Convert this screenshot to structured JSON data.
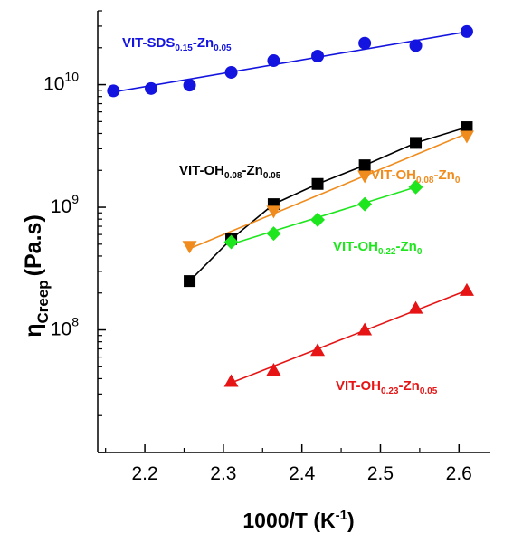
{
  "chart_data": {
    "type": "scatter",
    "title": "",
    "xlabel": "1000/T (K-1)",
    "xlabel_parts": {
      "main": "1000/T (K",
      "sup": "-1",
      "end": ")"
    },
    "ylabel": "ηCreep (Pa.s)",
    "ylabel_parts": {
      "eta": "η",
      "sub": "Creep",
      "unit": "(Pa.s)"
    },
    "x_range": [
      2.14,
      2.64
    ],
    "y_range": [
      10000000.0,
      40000000000.0
    ],
    "y_scale": "log",
    "x_ticks": [
      {
        "value": 2.2,
        "label": "2.2"
      },
      {
        "value": 2.3,
        "label": "2.3"
      },
      {
        "value": 2.4,
        "label": "2.4"
      },
      {
        "value": 2.5,
        "label": "2.5"
      },
      {
        "value": 2.6,
        "label": "2.6"
      }
    ],
    "y_ticks": [
      {
        "value": 100000000.0,
        "base": "10",
        "exp": "8"
      },
      {
        "value": 1000000000.0,
        "base": "10",
        "exp": "9"
      },
      {
        "value": 10000000000.0,
        "base": "10",
        "exp": "10"
      }
    ],
    "grid": false,
    "series": [
      {
        "id": "sds",
        "label_parts": [
          [
            "VIT-SDS",
            ""
          ],
          [
            "0.15",
            "sub"
          ],
          [
            "-Zn",
            ""
          ],
          [
            "0.05",
            "sub"
          ]
        ],
        "color": "#1414e0",
        "marker": "circle",
        "line": "fit",
        "x": [
          2.16,
          2.208,
          2.257,
          2.31,
          2.364,
          2.42,
          2.48,
          2.545,
          2.61
        ],
        "y": [
          8900000000.0,
          9300000000.0,
          9900000000.0,
          12600000000.0,
          15700000000.0,
          17100000000.0,
          21800000000.0,
          20800000000.0,
          27100000000.0
        ],
        "fit": {
          "x": [
            2.16,
            2.61
          ],
          "y": [
            8700000000.0,
            27000000000.0
          ]
        }
      },
      {
        "id": "oh008zn005",
        "label_parts": [
          [
            "VIT-OH",
            ""
          ],
          [
            "0.08",
            "sub"
          ],
          [
            "-Zn",
            ""
          ],
          [
            "0.05",
            "sub"
          ]
        ],
        "color": "#000000",
        "marker": "square",
        "line": "connect",
        "x": [
          2.257,
          2.31,
          2.364,
          2.42,
          2.48,
          2.545,
          2.61
        ],
        "y": [
          250000000.0,
          550000000.0,
          1060000000.0,
          1550000000.0,
          2200000000.0,
          3350000000.0,
          4500000000.0
        ]
      },
      {
        "id": "oh008zn0",
        "label_parts": [
          [
            "VIT-OH",
            ""
          ],
          [
            "0.08",
            "sub"
          ],
          [
            "-Zn",
            ""
          ],
          [
            "0",
            "sub"
          ]
        ],
        "color": "#f08c1e",
        "marker": "triangle-down",
        "line": "fit",
        "x": [
          2.257,
          2.364,
          2.48,
          2.61
        ],
        "y": [
          480000000.0,
          930000000.0,
          1800000000.0,
          3800000000.0
        ],
        "fit": {
          "x": [
            2.257,
            2.61
          ],
          "y": [
            460000000.0,
            4000000000.0
          ]
        }
      },
      {
        "id": "oh022zn0",
        "label_parts": [
          [
            "VIT-OH",
            ""
          ],
          [
            "0.22",
            "sub"
          ],
          [
            "-Zn",
            ""
          ],
          [
            "0",
            "sub"
          ]
        ],
        "color": "#1ee61e",
        "marker": "diamond",
        "line": "fit",
        "x": [
          2.31,
          2.364,
          2.42,
          2.48,
          2.545
        ],
        "y": [
          520000000.0,
          610000000.0,
          790000000.0,
          1060000000.0,
          1460000000.0
        ],
        "fit": {
          "x": [
            2.31,
            2.545
          ],
          "y": [
            500000000.0,
            1460000000.0
          ]
        }
      },
      {
        "id": "oh023zn005",
        "label_parts": [
          [
            "VIT-OH",
            ""
          ],
          [
            "0.23",
            "sub"
          ],
          [
            "-Zn",
            ""
          ],
          [
            "0.05",
            "sub"
          ]
        ],
        "color": "#e61414",
        "marker": "triangle-up",
        "line": "fit",
        "x": [
          2.31,
          2.364,
          2.42,
          2.48,
          2.545,
          2.61
        ],
        "y": [
          38000000.0,
          47000000.0,
          68000000.0,
          100000000.0,
          150000000.0,
          210000000.0
        ],
        "fit": {
          "x": [
            2.31,
            2.61
          ],
          "y": [
            37000000.0,
            210000000.0
          ]
        }
      }
    ]
  }
}
